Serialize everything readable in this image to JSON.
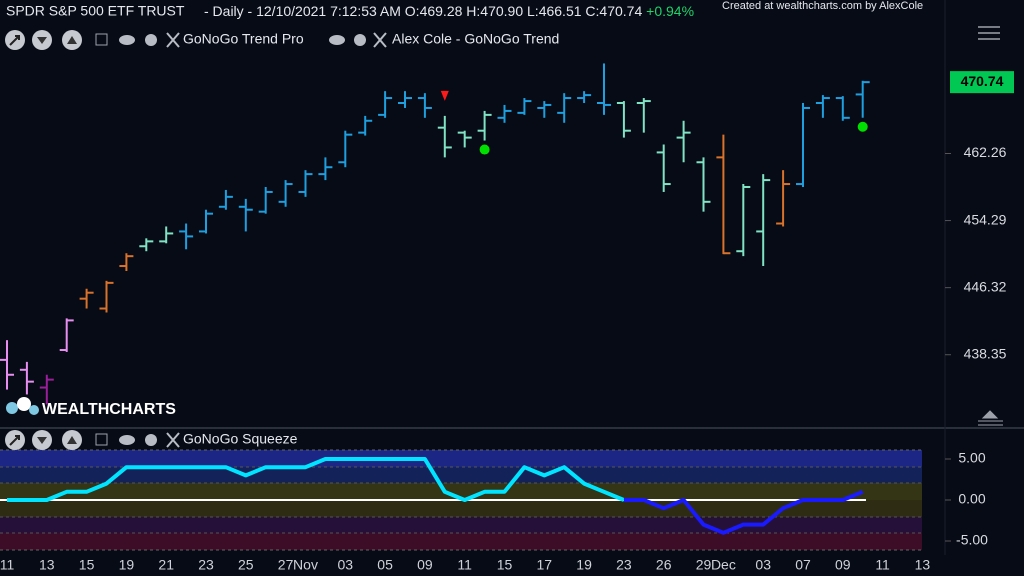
{
  "header": {
    "symbol": "SPDR S&P 500 ETF TRUST",
    "interval": "- Daily - 12/10/2021 7:12:53 AM",
    "quote": [
      {
        "key": "O:",
        "value": "469.28"
      },
      {
        "key": "H:",
        "value": "470.90"
      },
      {
        "key": "L:",
        "value": "466.51"
      },
      {
        "key": "C:",
        "value": "470.74"
      }
    ],
    "change": "+0.94%",
    "credit": "Created at wealthcharts.com by AlexCole"
  },
  "logo": "WEALTHCHARTS",
  "chart_data": [
    {
      "type": "ohlc",
      "title": "GoNoGo Trend Pro",
      "subtitle": "Alex Cole - GoNoGo Trend",
      "open": [
        437.74,
        436.56,
        434.45,
        438.91,
        445.01,
        443.84,
        448.89,
        451.24,
        451.82,
        453.0,
        453.0,
        455.93,
        455.93,
        455.35,
        456.52,
        457.69,
        459.81,
        461.22,
        464.74,
        466.85,
        468.26,
        468.85,
        465.33,
        464.74,
        464.97,
        466.5,
        467.09,
        467.67,
        467.09,
        468.85,
        468.26,
        468.26,
        468.26,
        462.39,
        464.15,
        461.22,
        461.8,
        450.65,
        453.0,
        453.94,
        458.63,
        468.26,
        468.85,
        469.28,
        null,
        null,
        null
      ],
      "high": [
        440.08,
        437.5,
        435.97,
        442.67,
        446.19,
        447.13,
        450.41,
        452.18,
        453.59,
        453.94,
        455.58,
        457.93,
        456.87,
        458.28,
        459.1,
        460.28,
        461.8,
        464.97,
        466.73,
        469.67,
        469.67,
        469.43,
        466.73,
        464.97,
        467.32,
        468.03,
        468.85,
        468.49,
        469.43,
        469.67,
        472.96,
        468.49,
        468.85,
        463.33,
        466.15,
        461.8,
        464.5,
        458.63,
        459.81,
        460.28,
        468.26,
        469.2,
        469.08,
        470.9,
        null,
        null,
        null
      ],
      "low": [
        434.21,
        433.63,
        432.45,
        438.68,
        443.84,
        443.37,
        448.3,
        450.65,
        451.59,
        450.88,
        452.76,
        455.58,
        453.0,
        455.11,
        455.93,
        457.11,
        459.1,
        460.63,
        464.39,
        466.5,
        467.67,
        466.5,
        461.8,
        462.98,
        463.8,
        465.91,
        466.85,
        466.5,
        465.91,
        468.26,
        466.85,
        464.15,
        464.74,
        457.69,
        461.22,
        455.35,
        450.3,
        450.06,
        448.89,
        453.59,
        458.28,
        466.5,
        466.15,
        466.51,
        null,
        null,
        null
      ],
      "close": [
        435.97,
        435.15,
        435.39,
        442.43,
        445.72,
        446.89,
        450.06,
        451.82,
        452.76,
        452.41,
        455.11,
        457.11,
        455.58,
        457.69,
        458.63,
        459.81,
        460.63,
        464.5,
        466.15,
        468.85,
        468.85,
        467.67,
        462.98,
        464.15,
        466.85,
        467.32,
        468.49,
        468.03,
        468.85,
        469.2,
        468.03,
        464.97,
        468.49,
        458.63,
        464.74,
        456.52,
        450.41,
        458.28,
        459.1,
        458.63,
        467.67,
        468.85,
        466.5,
        470.74,
        null,
        null,
        null
      ],
      "colors": [
        "#e88ef0",
        "#e88ef0",
        "#9b1f9b",
        "#e88ef0",
        "#d9722a",
        "#d9722a",
        "#d9722a",
        "#7fe3c4",
        "#7fe3c4",
        "#1e9fe0",
        "#1e9fe0",
        "#1e9fe0",
        "#1e9fe0",
        "#1e9fe0",
        "#1e9fe0",
        "#1e9fe0",
        "#1e9fe0",
        "#1e9fe0",
        "#1e9fe0",
        "#1e9fe0",
        "#1e9fe0",
        "#1e9fe0",
        "#7fe3c4",
        "#7fe3c4",
        "#7fe3c4",
        "#1e9fe0",
        "#1e9fe0",
        "#1e9fe0",
        "#1e9fe0",
        "#1e9fe0",
        "#1e9fe0",
        "#7fe3c4",
        "#7fe3c4",
        "#7fe3c4",
        "#7fe3c4",
        "#7fe3c4",
        "#d9722a",
        "#7fe3c4",
        "#7fe3c4",
        "#d9722a",
        "#1e9fe0",
        "#1e9fe0",
        "#1e9fe0",
        "#1e9fe0",
        null,
        null,
        null
      ],
      "ylim": [
        430.0,
        480.5
      ],
      "yticks": [
        438.35,
        446.32,
        454.29,
        462.26
      ],
      "current_price": 470.74,
      "current_price_color": "#00c853",
      "signals": [
        {
          "x": 22,
          "shape": "triangle",
          "color": "#ff1a1a"
        },
        {
          "x": 24,
          "shape": "dot",
          "color": "#00e000"
        },
        {
          "x": 43,
          "shape": "dot",
          "color": "#00e000"
        }
      ]
    },
    {
      "type": "line",
      "title": "GoNoGo Squeeze",
      "categories": [
        "11",
        null,
        "13",
        null,
        "15",
        null,
        "19",
        null,
        "21",
        null,
        "23",
        null,
        "25",
        null,
        "27",
        "Nov",
        null,
        "03",
        null,
        "05",
        null,
        "09",
        null,
        "11",
        null,
        "15",
        null,
        "17",
        null,
        "19",
        null,
        "23",
        null,
        "26",
        null,
        "29",
        "Dec",
        null,
        "03",
        null,
        "07",
        null,
        "09",
        null,
        "11",
        null,
        "13"
      ],
      "series": [
        {
          "color": "#00e5ff",
          "values": [
            0,
            0,
            0,
            1,
            1,
            2,
            4,
            4,
            4,
            4,
            4,
            4,
            3,
            4,
            4,
            4,
            5,
            5,
            5,
            5,
            5,
            5,
            1,
            0,
            1,
            1,
            4,
            3,
            4,
            2,
            1,
            0,
            null,
            null,
            null,
            null,
            null,
            null,
            null,
            null,
            null,
            null,
            null,
            null,
            null,
            null,
            null
          ]
        },
        {
          "color": "#1a1aff",
          "values": [
            null,
            null,
            null,
            null,
            null,
            null,
            null,
            null,
            null,
            null,
            null,
            null,
            null,
            null,
            null,
            null,
            null,
            null,
            null,
            null,
            null,
            null,
            null,
            null,
            null,
            null,
            null,
            null,
            null,
            null,
            null,
            0,
            0,
            -1,
            0,
            -3,
            -4,
            -3,
            -3,
            -1,
            0,
            0,
            0,
            1,
            null,
            null,
            null
          ]
        }
      ],
      "ylim": [
        -6.34,
        6.34
      ],
      "yticks": [
        {
          "value": 5,
          "label": "5.00"
        },
        {
          "value": 0,
          "label": "0.00"
        },
        {
          "value": -5,
          "label": "-5.00"
        }
      ],
      "zero_line_color": "#ffffff"
    }
  ]
}
